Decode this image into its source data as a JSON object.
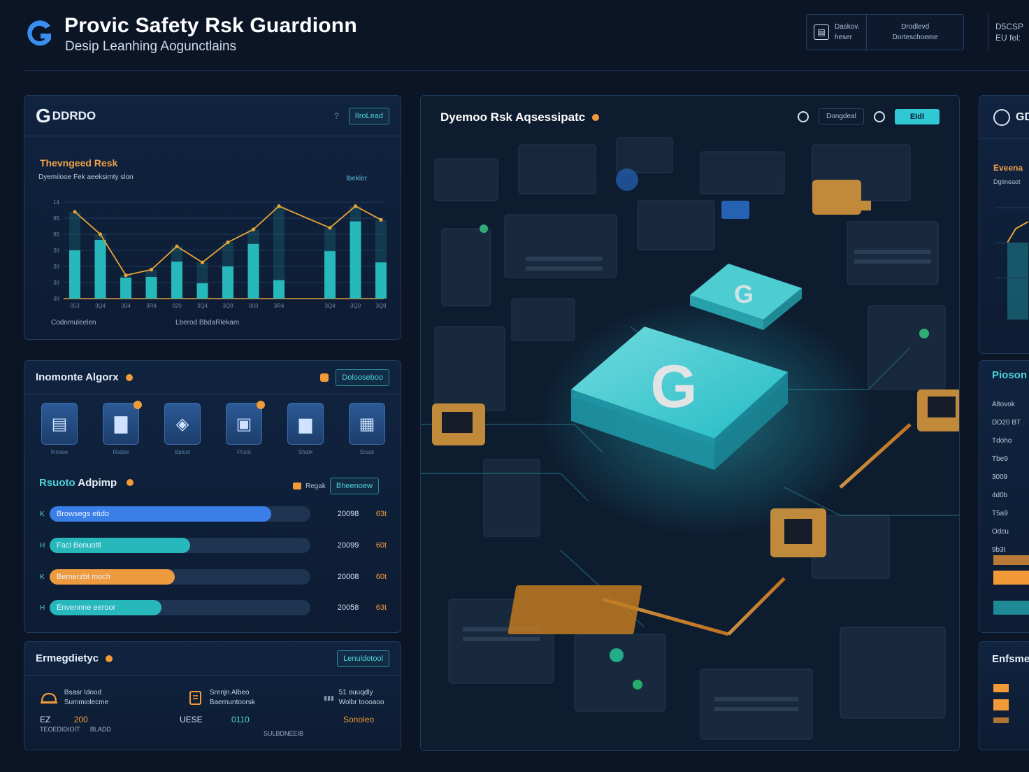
{
  "header": {
    "title": "Provic Safety Rsk Guardionn",
    "subtitle": "Desip Leanhing Aogunctlains",
    "box_left": {
      "icon": "chart-icon",
      "line1": "Daskov.",
      "line2": "heser"
    },
    "box_right": {
      "line1": "Drodlevd",
      "line2": "Dorteschoeme"
    },
    "box_far": {
      "line1": "D5CSP",
      "line2": "EU fel:"
    }
  },
  "overview_panel": {
    "brand": "DDRDO",
    "button": "IIroLead",
    "risk_title": "Thevngeed Resk",
    "risk_subtitle": "Dyemilooe Fek aeeksimty slon",
    "risk_link": "Ibekler",
    "footer_left": "Codnmuleelen",
    "footer_center": "Lberod BbdaRlekam",
    "colors": {
      "bar": "#27b8bb",
      "line": "#e8a436"
    }
  },
  "chart_data": {
    "type": "bar",
    "title": "",
    "legend": "none",
    "grid": true,
    "categories": [
      "053",
      "3Q4",
      "304",
      "3R4",
      "020",
      "3Q4",
      "3Q9",
      "003",
      "3R4",
      "",
      "3Q4",
      "3Q0",
      "3Q8"
    ],
    "y_tick_labels": [
      "3II",
      "3II",
      "3II",
      "3II",
      "90",
      "95",
      "14"
    ],
    "series": [
      {
        "values": [
          60,
          73,
          26,
          27,
          46,
          19,
          40,
          68,
          23,
          0,
          59,
          96,
          45
        ]
      },
      {
        "values": [
          108,
          80,
          29,
          36,
          65,
          45,
          70,
          86,
          115,
          0,
          88,
          115,
          98
        ]
      }
    ],
    "ylim": [
      0,
      120
    ]
  },
  "algo_panel": {
    "title": "Inomonte Algorx",
    "button": "Dolooseboo",
    "icons": [
      {
        "name": "pipeline-icon",
        "label": "Ihnaoe",
        "badge": false
      },
      {
        "name": "bar-chart-icon",
        "label": "Rsdoe",
        "badge": true
      },
      {
        "name": "layers-icon",
        "label": "Bplcel",
        "badge": false
      },
      {
        "name": "building-icon",
        "label": "Fhsot",
        "badge": true
      },
      {
        "name": "column-chart-icon",
        "label": "Sfabk",
        "badge": false
      },
      {
        "name": "database-icon",
        "label": "Srsak",
        "badge": false
      }
    ],
    "sub_title_a": "Rsuoto",
    "sub_title_b": "Adpimp",
    "sub_ctrl_label": "Regak",
    "sub_button": "Bheenoew",
    "bars": [
      {
        "label": "Browsegs etido",
        "value": "20098",
        "pct": "63t",
        "fill": 0.85,
        "color": "#3a7ee8",
        "mark": "K"
      },
      {
        "label": "Facl Benuoltl",
        "value": "20099",
        "pct": "60t",
        "fill": 0.54,
        "color": "#27b8bb",
        "mark": "H"
      },
      {
        "label": "Bemerzbt moch",
        "value": "20008",
        "pct": "60t",
        "fill": 0.48,
        "color": "#ee9a3e",
        "mark": "K"
      },
      {
        "label": "Envennne eeroor",
        "value": "20058",
        "pct": "63t",
        "fill": 0.43,
        "color": "#27b8bb",
        "mark": "H"
      }
    ]
  },
  "engage_panel": {
    "title": "Ermegdietyc",
    "button": "Lenuldotool",
    "col1": {
      "line1": "Bsasr Idood",
      "line2": "Summiolecme",
      "val_a": "EZ",
      "val_b": "200",
      "val_c": "TEOEDIDIOIT",
      "val_d": "BLADD"
    },
    "col2": {
      "line1": "Srenjn Albeo",
      "line2": "Baernuntoorsk",
      "val_a": "UESE",
      "val_b": "0110"
    },
    "col3": {
      "line1": "51 ouuqdly",
      "line2": "Wolbr toooaoo",
      "val_a": "Sonoleo",
      "footer": "SULBDNEEIB"
    }
  },
  "viz_panel": {
    "title": "Dyemoo Rsk Aqsessipatc",
    "pill": "Dongdeal",
    "button": "EIdl",
    "chip_letter": "G",
    "colors": {
      "accent": "#2fe0e6",
      "warm": "#f3a53a"
    }
  },
  "right_edge": {
    "r1_title": "GD",
    "r1_sub_a": "Eveena",
    "r1_sub_b": "Dgtineaot",
    "r2_title": "Pioson",
    "r2_lines": [
      "Altovok",
      "DD20 BT",
      "Tdoho",
      "Tbe9",
      "3009",
      "4d0b",
      "T5a9",
      "Odcu",
      "9b3t"
    ],
    "r3_title": "Enfsme"
  }
}
